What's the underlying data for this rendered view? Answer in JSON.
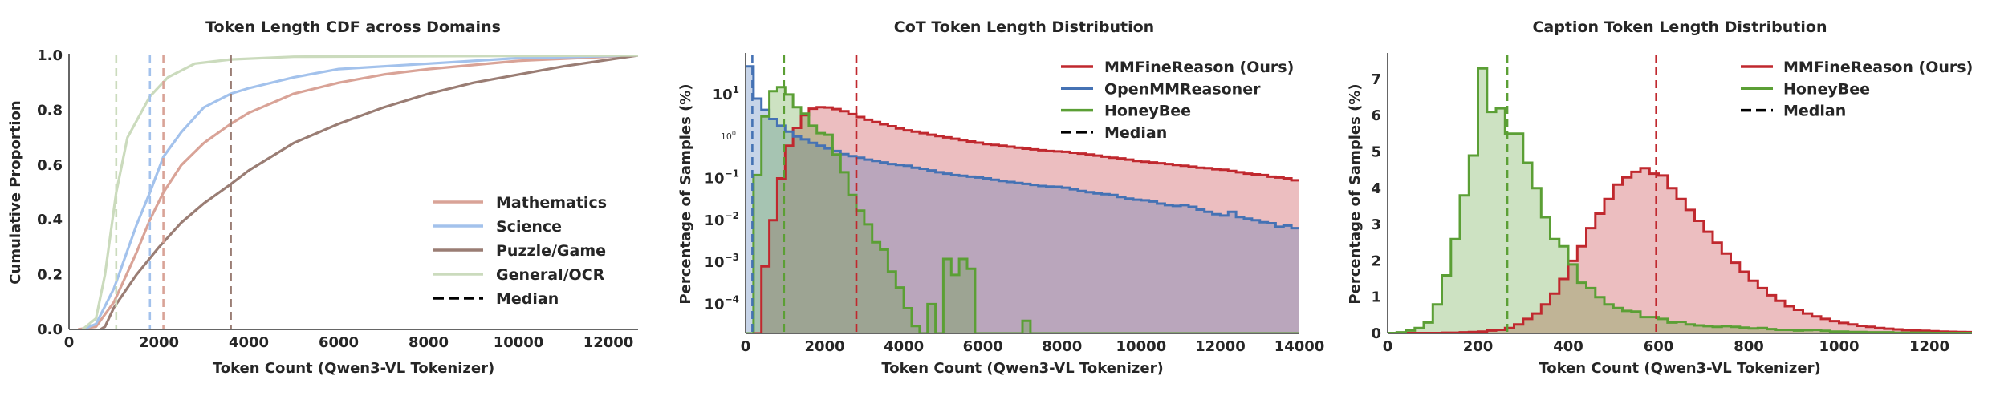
{
  "colors": {
    "axis": "#333333",
    "mathematics": "#d9a397",
    "science": "#a3c2ec",
    "puzzle": "#9a7d74",
    "general": "#cbdbbd",
    "mmfinereason": "#c0282e",
    "openmmreasoner": "#4572b4",
    "honeybee": "#5b9f35"
  },
  "chart_data": [
    {
      "type": "line",
      "title": "Token Length CDF across Domains",
      "xlabel": "Token Count (Qwen3-VL Tokenizer)",
      "ylabel": "Cumulative Proportion",
      "xlim": [
        0,
        12660
      ],
      "ylim": [
        0,
        1.0
      ],
      "xticks": [
        0,
        2000,
        4000,
        6000,
        8000,
        10000,
        12000
      ],
      "xtick_labels": [
        "0",
        "2000",
        "4000",
        "6000",
        "8000",
        "10000",
        "12000"
      ],
      "yticks": [
        0,
        0.2,
        0.4,
        0.6,
        0.8,
        1.0
      ],
      "ytick_labels": [
        "0.0",
        "0.2",
        "0.4",
        "0.6",
        "0.8",
        "1.0"
      ],
      "grid": false,
      "legend_placement": "lower-right",
      "median_legend_label": "Median",
      "series": [
        {
          "name": "Mathematics",
          "color_key": "mathematics",
          "median": 2100,
          "points": [
            [
              200,
              0
            ],
            [
              600,
              0.01
            ],
            [
              1000,
              0.1
            ],
            [
              1500,
              0.28
            ],
            [
              1800,
              0.4
            ],
            [
              2100,
              0.5
            ],
            [
              2500,
              0.6
            ],
            [
              3000,
              0.68
            ],
            [
              3600,
              0.75
            ],
            [
              4000,
              0.79
            ],
            [
              5000,
              0.86
            ],
            [
              6000,
              0.9
            ],
            [
              7000,
              0.93
            ],
            [
              8000,
              0.95
            ],
            [
              10000,
              0.98
            ],
            [
              12660,
              1.0
            ]
          ]
        },
        {
          "name": "Science",
          "color_key": "science",
          "median": 1800,
          "points": [
            [
              300,
              0
            ],
            [
              600,
              0.02
            ],
            [
              1000,
              0.15
            ],
            [
              1500,
              0.38
            ],
            [
              1800,
              0.5
            ],
            [
              2100,
              0.63
            ],
            [
              2500,
              0.72
            ],
            [
              3000,
              0.81
            ],
            [
              3600,
              0.86
            ],
            [
              4000,
              0.88
            ],
            [
              5000,
              0.92
            ],
            [
              6000,
              0.95
            ],
            [
              8000,
              0.97
            ],
            [
              10000,
              0.99
            ],
            [
              12660,
              1.0
            ]
          ]
        },
        {
          "name": "Puzzle/Game",
          "color_key": "puzzle",
          "median": 3600,
          "points": [
            [
              700,
              0
            ],
            [
              800,
              0.01
            ],
            [
              1000,
              0.08
            ],
            [
              1500,
              0.2
            ],
            [
              2000,
              0.3
            ],
            [
              2500,
              0.39
            ],
            [
              3000,
              0.46
            ],
            [
              3600,
              0.53
            ],
            [
              4000,
              0.58
            ],
            [
              5000,
              0.68
            ],
            [
              6000,
              0.75
            ],
            [
              7000,
              0.81
            ],
            [
              8000,
              0.86
            ],
            [
              9000,
              0.9
            ],
            [
              10000,
              0.93
            ],
            [
              11000,
              0.96
            ],
            [
              12660,
              1.0
            ]
          ]
        },
        {
          "name": "General/OCR",
          "color_key": "general",
          "median": 1050,
          "points": [
            [
              300,
              0
            ],
            [
              600,
              0.04
            ],
            [
              800,
              0.2
            ],
            [
              1050,
              0.5
            ],
            [
              1300,
              0.7
            ],
            [
              1800,
              0.85
            ],
            [
              2200,
              0.92
            ],
            [
              2800,
              0.97
            ],
            [
              3600,
              0.985
            ],
            [
              5000,
              0.995
            ],
            [
              12660,
              1.0
            ]
          ]
        }
      ]
    },
    {
      "type": "histogram",
      "title": "CoT Token Length Distribution",
      "xlabel": "Token Count (Qwen3-VL Tokenizer)",
      "ylabel": "Percentage of Samples (%)",
      "yscale": "log",
      "xlim": [
        0,
        14000
      ],
      "ylim": [
        2e-05,
        90
      ],
      "xticks": [
        0,
        2000,
        4000,
        6000,
        8000,
        10000,
        12000,
        14000
      ],
      "xtick_labels": [
        "0",
        "2000",
        "4000",
        "6000",
        "8000",
        "10000",
        "12000",
        "14000"
      ],
      "yticks": [
        10,
        0.1,
        0.01,
        0.001,
        0.0001
      ],
      "ytick_labels": [
        {
          "base": "10",
          "exp": "1"
        },
        {
          "base": "10",
          "exp": "−1"
        },
        {
          "base": "10",
          "exp": "−2"
        },
        {
          "base": "10",
          "exp": "−3"
        },
        {
          "base": "10",
          "exp": "−4"
        }
      ],
      "minor_label": {
        "value": 1,
        "base": "10",
        "exp": "0"
      },
      "grid": false,
      "legend_placement": "top-right",
      "median_legend_label": "Median",
      "bin_width": 200,
      "series": [
        {
          "name": "MMFineReason (Ours)",
          "color_key": "mmfinereason",
          "median": 2800,
          "values": [
            0,
            0,
            0.0008,
            0.01,
            0.1,
            0.6,
            1.6,
            3.2,
            4.6,
            5.0,
            4.9,
            4.5,
            4.0,
            3.4,
            2.9,
            2.5,
            2.2,
            1.95,
            1.75,
            1.55,
            1.4,
            1.3,
            1.2,
            1.1,
            1.02,
            0.95,
            0.88,
            0.82,
            0.76,
            0.71,
            0.66,
            0.63,
            0.6,
            0.57,
            0.54,
            0.51,
            0.49,
            0.47,
            0.45,
            0.44,
            0.43,
            0.41,
            0.39,
            0.37,
            0.35,
            0.33,
            0.31,
            0.3,
            0.28,
            0.26,
            0.25,
            0.24,
            0.23,
            0.22,
            0.21,
            0.2,
            0.19,
            0.18,
            0.175,
            0.165,
            0.16,
            0.15,
            0.14,
            0.13,
            0.125,
            0.12,
            0.11,
            0.105,
            0.1,
            0.09
          ]
        },
        {
          "name": "OpenMMReasoner",
          "color_key": "openmmreasoner",
          "median": 170,
          "values": [
            47,
            8,
            4.3,
            2.6,
            1.8,
            1.3,
            1.0,
            0.85,
            0.7,
            0.6,
            0.52,
            0.45,
            0.38,
            0.34,
            0.31,
            0.28,
            0.26,
            0.24,
            0.22,
            0.21,
            0.2,
            0.18,
            0.17,
            0.155,
            0.14,
            0.13,
            0.12,
            0.115,
            0.11,
            0.105,
            0.1,
            0.093,
            0.087,
            0.082,
            0.078,
            0.074,
            0.07,
            0.066,
            0.064,
            0.063,
            0.06,
            0.055,
            0.05,
            0.047,
            0.044,
            0.042,
            0.04,
            0.036,
            0.033,
            0.031,
            0.03,
            0.028,
            0.025,
            0.023,
            0.022,
            0.023,
            0.021,
            0.018,
            0.016,
            0.014,
            0.013,
            0.016,
            0.012,
            0.011,
            0.01,
            0.009,
            0.0085,
            0.007,
            0.0075,
            0.0065
          ]
        },
        {
          "name": "HoneyBee",
          "color_key": "honeybee",
          "median": 970,
          "values": [
            0,
            0.12,
            3,
            12,
            15,
            10,
            5,
            3.5,
            1.8,
            1.2,
            1.1,
            0.37,
            0.14,
            0.04,
            0.017,
            0.008,
            0.003,
            0.002,
            0.0006,
            0.00025,
            8e-05,
            3e-05,
            0,
            0.0001,
            0,
            0.0012,
            0.0005,
            0.0012,
            0.0007,
            0,
            0,
            0,
            0,
            0,
            0,
            4e-05,
            0,
            0,
            0,
            0,
            0,
            0,
            0,
            0,
            0,
            0,
            0,
            0,
            0,
            0,
            0,
            0,
            0,
            0,
            0,
            0,
            0,
            0,
            0,
            0,
            0,
            0,
            0,
            0,
            0,
            0,
            0,
            0,
            0,
            0
          ]
        }
      ]
    },
    {
      "type": "histogram",
      "title": "Caption Token Length Distribution",
      "xlabel": "Token Count (Qwen3-VL Tokenizer)",
      "ylabel": "Percentage of Samples (%)",
      "yscale": "linear",
      "xlim": [
        0,
        1328
      ],
      "ylim": [
        0,
        7.68
      ],
      "xticks": [
        0,
        200,
        400,
        600,
        800,
        1000,
        1200
      ],
      "xtick_labels": [
        "0",
        "200",
        "400",
        "600",
        "800",
        "1000",
        "1200"
      ],
      "yticks": [
        0,
        1,
        2,
        3,
        4,
        5,
        6,
        7
      ],
      "ytick_labels": [
        "0",
        "1",
        "2",
        "3",
        "4",
        "5",
        "6",
        "7"
      ],
      "grid": false,
      "legend_placement": "top-right",
      "median_legend_label": "Median",
      "bin_width": 20,
      "series": [
        {
          "name": "MMFineReason (Ours)",
          "color_key": "mmfinereason",
          "median": 595,
          "values": [
            0.01,
            0.01,
            0.01,
            0.01,
            0.01,
            0.01,
            0.02,
            0.02,
            0.03,
            0.04,
            0.05,
            0.08,
            0.1,
            0.15,
            0.25,
            0.4,
            0.55,
            0.8,
            1.1,
            1.5,
            2.0,
            2.4,
            2.9,
            3.3,
            3.7,
            4.1,
            4.3,
            4.45,
            4.55,
            4.4,
            4.35,
            4.0,
            3.7,
            3.4,
            3.1,
            2.8,
            2.5,
            2.2,
            1.95,
            1.7,
            1.45,
            1.25,
            1.05,
            0.9,
            0.75,
            0.65,
            0.55,
            0.47,
            0.4,
            0.34,
            0.29,
            0.25,
            0.21,
            0.18,
            0.15,
            0.13,
            0.11,
            0.09,
            0.08,
            0.07,
            0.06,
            0.05,
            0.045,
            0.04,
            0.035,
            0.03
          ]
        },
        {
          "name": "HoneyBee",
          "color_key": "honeybee",
          "median": 265,
          "values": [
            0.01,
            0.03,
            0.08,
            0.15,
            0.3,
            0.8,
            1.6,
            2.6,
            3.8,
            4.9,
            7.3,
            6.1,
            6.2,
            5.5,
            5.5,
            4.7,
            4.0,
            3.2,
            2.6,
            2.4,
            1.9,
            1.4,
            1.25,
            1.0,
            0.8,
            0.7,
            0.62,
            0.6,
            0.45,
            0.45,
            0.4,
            0.3,
            0.32,
            0.25,
            0.22,
            0.2,
            0.18,
            0.2,
            0.18,
            0.16,
            0.14,
            0.15,
            0.12,
            0.1,
            0.1,
            0.08,
            0.09,
            0.1,
            0.07,
            0.05,
            0.05,
            0.04,
            0.04,
            0.03,
            0.03,
            0.03,
            0.02,
            0.02,
            0.02,
            0.02,
            0.01,
            0.01,
            0.01,
            0.01,
            0.01,
            0.01
          ]
        }
      ]
    }
  ]
}
